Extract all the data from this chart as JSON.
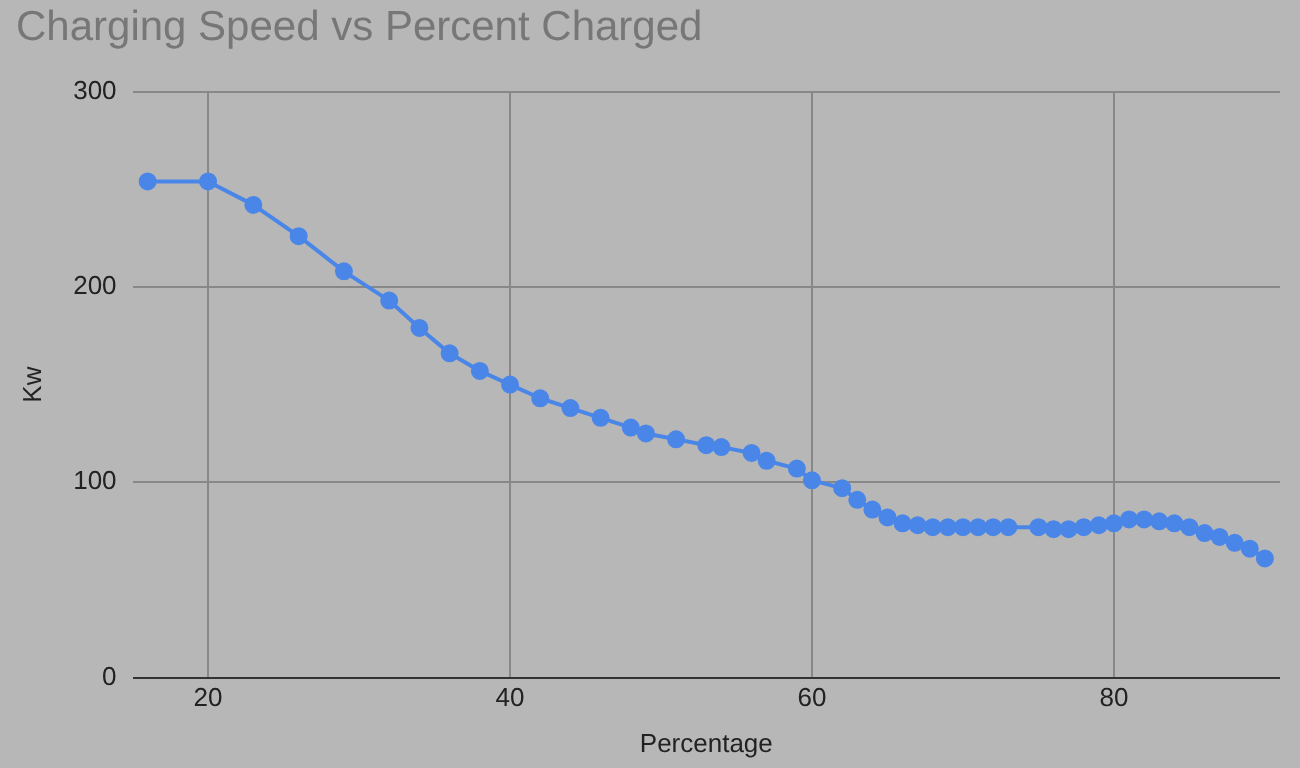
{
  "chart_data": {
    "type": "line",
    "title": "Charging Speed vs Percent Charged",
    "xlabel": "Percentage",
    "ylabel": "Kw",
    "x": [
      16,
      20,
      23,
      26,
      29,
      32,
      34,
      36,
      38,
      40,
      42,
      44,
      46,
      48,
      49,
      51,
      53,
      54,
      56,
      57,
      59,
      60,
      62,
      63,
      64,
      65,
      66,
      67,
      68,
      69,
      70,
      71,
      72,
      73,
      75,
      76,
      77,
      78,
      79,
      80,
      81,
      82,
      83,
      84,
      85,
      86,
      87,
      88,
      89,
      90
    ],
    "series": [
      {
        "color": "#4a86e8",
        "values": [
          254,
          254,
          242,
          226,
          208,
          193,
          179,
          166,
          157,
          150,
          143,
          138,
          133,
          128,
          125,
          122,
          119,
          118,
          115,
          111,
          107,
          101,
          97,
          91,
          86,
          82,
          79,
          78,
          77,
          77,
          77,
          77,
          77,
          77,
          77,
          76,
          76,
          77,
          78,
          79,
          81,
          81,
          80,
          79,
          77,
          74,
          72,
          69,
          66,
          61
        ]
      }
    ],
    "xlim": [
      15,
      91
    ],
    "xticks": [
      20,
      40,
      60,
      80
    ],
    "ylim": [
      0,
      300
    ],
    "yticks": [
      0,
      100,
      200,
      300
    ],
    "grid": true,
    "legend": false,
    "marker": "circle",
    "line_style": "solid"
  }
}
